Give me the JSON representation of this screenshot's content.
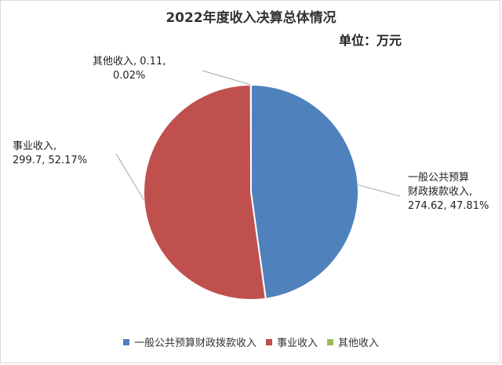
{
  "chart_data": {
    "type": "pie",
    "title": "2022年度收入决算总体情况",
    "unit_label": "单位：万元",
    "slices": [
      {
        "name": "一般公共预算财政拨款收入",
        "value": 274.62,
        "percent": 47.81,
        "color": "#4f81bd",
        "label_lines": [
          "一般公共预算",
          "财政拨款收入,",
          "274.62, 47.81%"
        ]
      },
      {
        "name": "事业收入",
        "value": 299.7,
        "percent": 52.17,
        "color": "#c0504d",
        "label_lines": [
          "事业收入,",
          "299.7, 52.17%"
        ]
      },
      {
        "name": "其他收入",
        "value": 0.11,
        "percent": 0.02,
        "color": "#9bbb59",
        "label_lines": [
          "其他收入, 0.11,",
          "0.02%"
        ]
      }
    ],
    "legend": {
      "position": "bottom",
      "items": [
        "一般公共预算财政拨款收入",
        "事业收入",
        "其他收入"
      ]
    }
  }
}
